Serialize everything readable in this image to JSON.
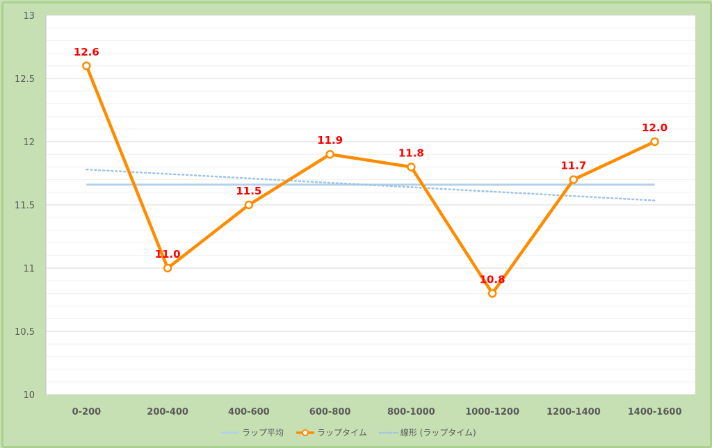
{
  "chart_data": {
    "type": "line",
    "categories": [
      "0-200",
      "200-400",
      "400-600",
      "600-800",
      "800-1000",
      "1000-1200",
      "1200-1400",
      "1400-1600"
    ],
    "ylim": [
      10,
      13
    ],
    "yticks": [
      "10",
      "10.5",
      "11",
      "11.5",
      "12",
      "12.5",
      "13"
    ],
    "grid": true,
    "legend_position": "bottom",
    "series": [
      {
        "name": "ラップ平均",
        "kind": "average-line",
        "color": "#b4d0e8",
        "values": [
          11.66,
          11.66,
          11.66,
          11.66,
          11.66,
          11.66,
          11.66,
          11.66
        ]
      },
      {
        "name": "ラップタイム",
        "kind": "line-markers",
        "color": "#ff8c00",
        "values": [
          12.6,
          11.0,
          11.5,
          11.9,
          11.8,
          10.8,
          11.7,
          12.0
        ],
        "data_labels": [
          "12.6",
          "11.0",
          "11.5",
          "11.9",
          "11.8",
          "10.8",
          "11.7",
          "12.0"
        ]
      },
      {
        "name": "線形 (ラップタイム)",
        "kind": "trendline",
        "color": "#9dc3e6",
        "values": [
          11.78,
          11.745,
          11.71,
          11.675,
          11.64,
          11.605,
          11.57,
          11.535
        ]
      }
    ]
  }
}
